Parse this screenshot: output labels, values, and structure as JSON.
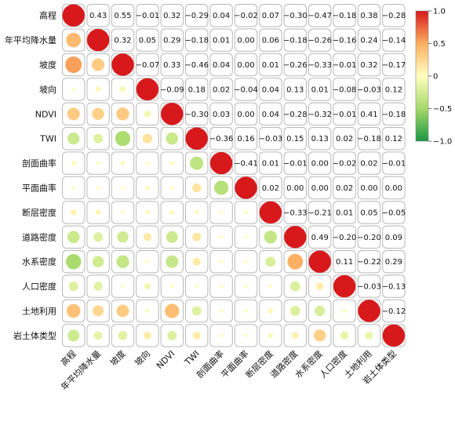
{
  "chart_data": {
    "type": "heatmap",
    "variables": [
      "高程",
      "年平均降水量",
      "坡度",
      "坡向",
      "NDVI",
      "TWI",
      "剖面曲率",
      "平面曲率",
      "断层密度",
      "道路密度",
      "水系密度",
      "人口密度",
      "土地利用",
      "岩土体类型"
    ],
    "matrix": [
      [
        1.0,
        0.43,
        0.55,
        -0.01,
        0.32,
        -0.29,
        0.04,
        -0.02,
        0.07,
        -0.3,
        -0.47,
        -0.18,
        0.38,
        -0.28
      ],
      [
        0.43,
        1.0,
        0.32,
        0.05,
        0.29,
        -0.18,
        0.01,
        0.0,
        0.06,
        -0.18,
        -0.26,
        -0.16,
        0.24,
        -0.14
      ],
      [
        0.55,
        0.32,
        1.0,
        -0.07,
        0.33,
        -0.46,
        0.04,
        0.0,
        0.01,
        -0.26,
        -0.33,
        -0.01,
        0.32,
        -0.17
      ],
      [
        -0.01,
        0.05,
        -0.07,
        1.0,
        -0.09,
        0.18,
        0.02,
        -0.04,
        0.04,
        0.13,
        0.01,
        -0.08,
        -0.03,
        0.12
      ],
      [
        0.32,
        0.29,
        0.33,
        -0.09,
        1.0,
        -0.3,
        0.03,
        0.0,
        0.04,
        -0.28,
        -0.32,
        -0.01,
        0.41,
        -0.18
      ],
      [
        -0.29,
        -0.18,
        -0.46,
        0.18,
        -0.3,
        1.0,
        -0.36,
        0.16,
        -0.03,
        0.15,
        0.13,
        0.02,
        -0.18,
        0.12
      ],
      [
        0.04,
        0.01,
        0.04,
        0.02,
        0.03,
        -0.36,
        1.0,
        -0.41,
        0.01,
        -0.01,
        0.0,
        -0.02,
        0.02,
        -0.01
      ],
      [
        -0.02,
        0.0,
        0.0,
        -0.04,
        0.0,
        0.16,
        -0.41,
        1.0,
        0.02,
        0.0,
        0.0,
        0.02,
        0.0,
        0.0
      ],
      [
        0.07,
        0.06,
        0.01,
        0.04,
        0.04,
        -0.03,
        0.01,
        0.02,
        1.0,
        -0.33,
        -0.21,
        0.01,
        0.05,
        -0.05
      ],
      [
        -0.3,
        -0.18,
        -0.26,
        0.13,
        -0.28,
        0.15,
        -0.01,
        0.0,
        -0.33,
        1.0,
        0.49,
        -0.2,
        -0.2,
        0.09
      ],
      [
        -0.47,
        -0.26,
        -0.33,
        0.01,
        -0.32,
        0.13,
        0.0,
        0.0,
        -0.21,
        0.49,
        1.0,
        0.11,
        -0.22,
        0.29
      ],
      [
        -0.18,
        -0.16,
        -0.01,
        -0.08,
        -0.01,
        0.02,
        -0.02,
        0.02,
        0.01,
        -0.2,
        0.11,
        1.0,
        -0.03,
        -0.13
      ],
      [
        0.38,
        0.24,
        0.32,
        -0.03,
        0.41,
        -0.18,
        0.02,
        0.0,
        0.05,
        -0.2,
        -0.22,
        -0.03,
        1.0,
        -0.12
      ],
      [
        -0.28,
        -0.14,
        -0.17,
        0.12,
        -0.18,
        0.12,
        -0.01,
        0.0,
        -0.05,
        0.09,
        0.29,
        -0.13,
        -0.12,
        1.0
      ]
    ],
    "lower_triangle": "circles",
    "upper_triangle": "numbers",
    "diagonal": "circles",
    "colorbar": {
      "range": [
        -1.0,
        1.0
      ],
      "ticks": [
        "1.0",
        "0.5",
        "0",
        "−0.5",
        "−1.0"
      ],
      "tick_values": [
        1.0,
        0.5,
        0,
        -0.5,
        -1.0
      ],
      "colors": [
        "#1a9641",
        "#a6d96a",
        "#ffffbf",
        "#fdae61",
        "#d7191c"
      ],
      "placement": "right"
    },
    "title": "",
    "xlabel": "",
    "ylabel": ""
  }
}
